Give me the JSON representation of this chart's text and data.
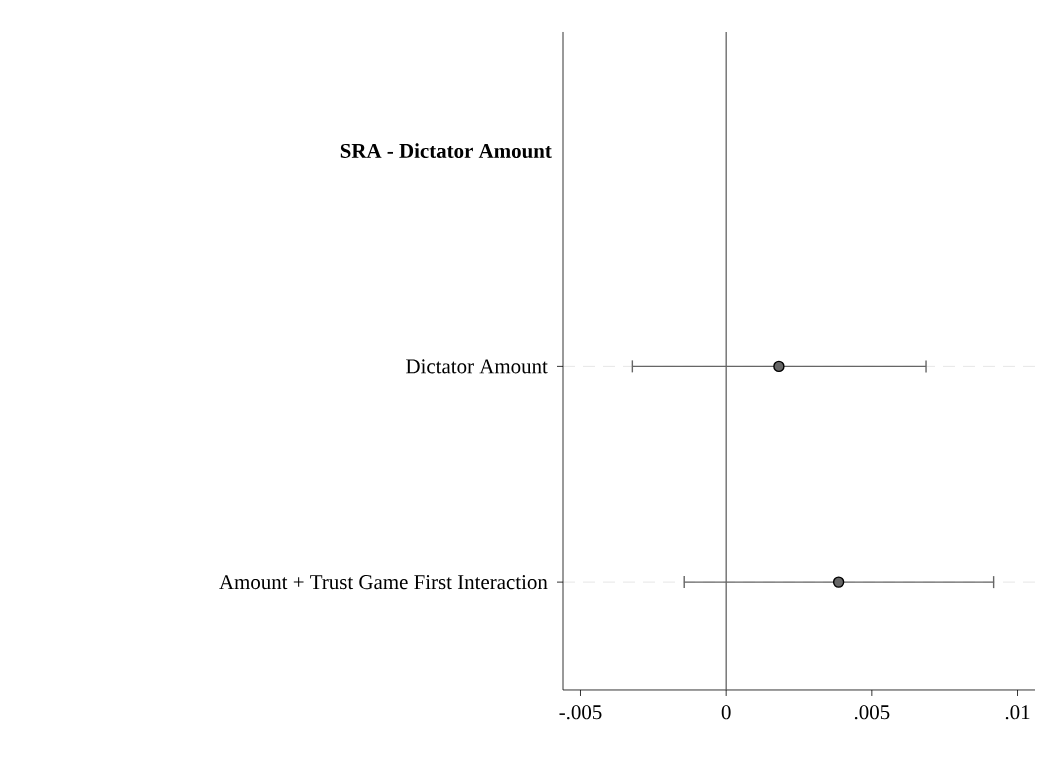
{
  "chart_data": {
    "type": "scatter",
    "orientation": "horizontal",
    "categories": [
      "SRA - Dictator Amount",
      "Dictator Amount",
      "Amount + Trust Game First Interaction"
    ],
    "values": [
      null,
      0.00181,
      0.00386
    ],
    "errors": [
      null,
      [
        -0.00322,
        0.00686
      ],
      [
        -0.00144,
        0.00918
      ]
    ],
    "color": "#666666",
    "marker": "circle",
    "grid": "y",
    "xlim": [
      -0.0056,
      0.0106
    ],
    "xticks": [
      {
        "value": -0.005,
        "label": "-.005"
      },
      {
        "value": 0,
        "label": "0"
      },
      {
        "value": 0.005,
        "label": ".005"
      },
      {
        "value": 0.01,
        "label": ".01"
      }
    ],
    "ref_lines": [
      {
        "axis": "x",
        "value": 0,
        "color": "#555555"
      }
    ]
  }
}
